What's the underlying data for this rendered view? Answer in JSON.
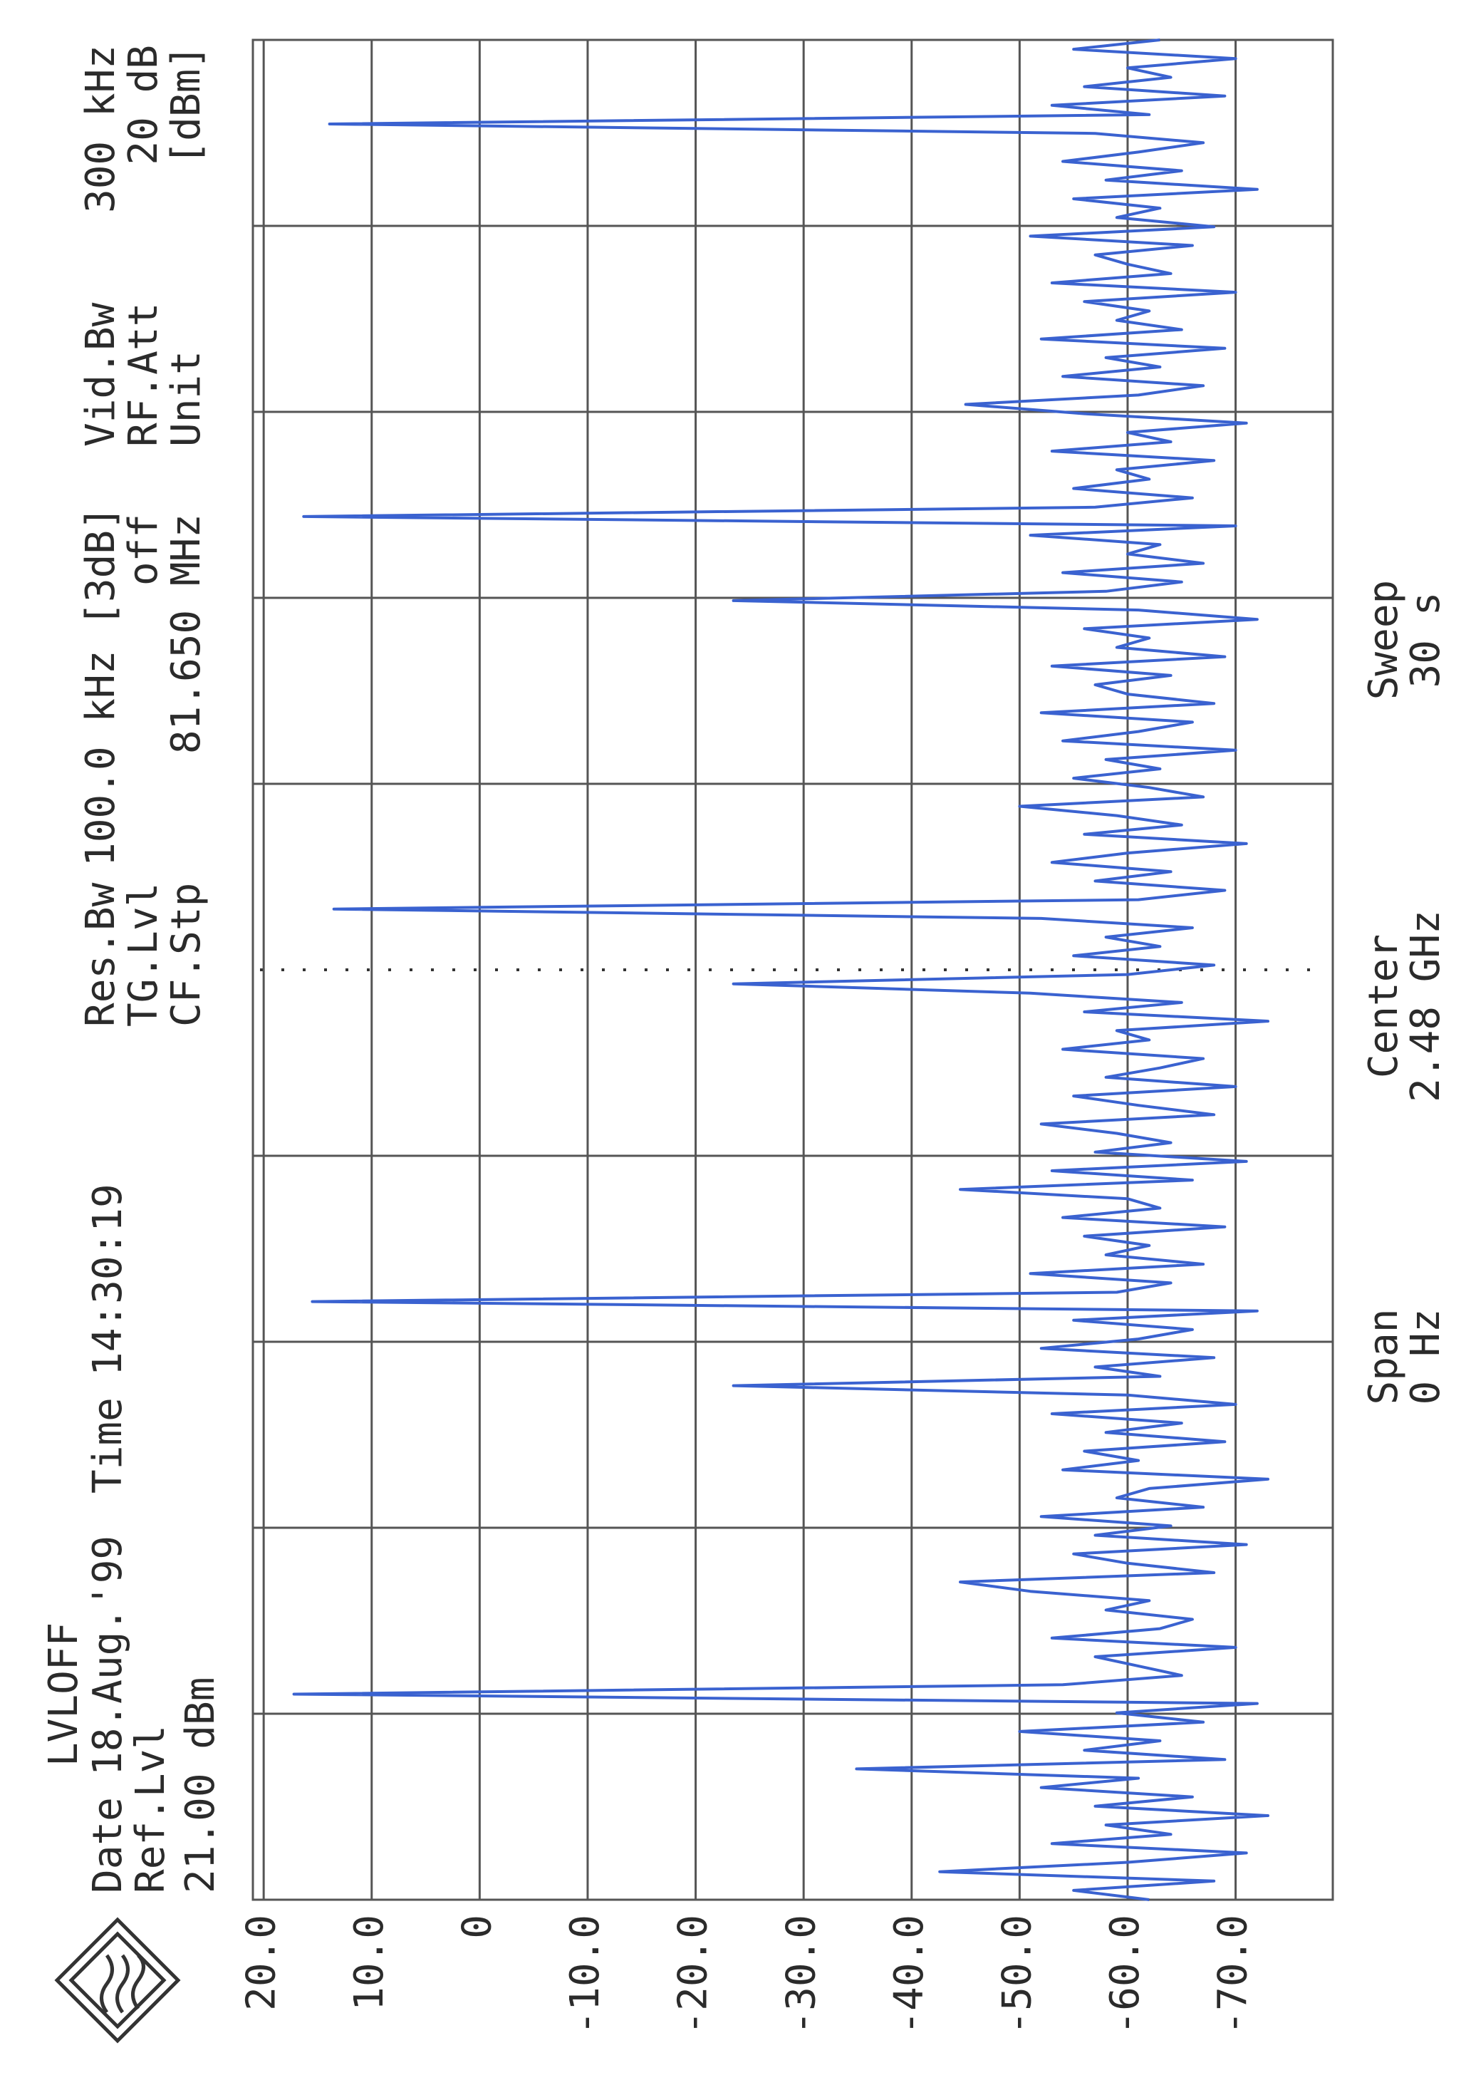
{
  "chart_data": {
    "type": "line",
    "status": "LVLOFF",
    "info": [
      {
        "label": "Date",
        "value": "18.Aug.'99"
      },
      {
        "label": "Time",
        "value": "14:30:19"
      },
      {
        "label": "Ref.Lvl",
        "value": "21.00 dBm"
      },
      {
        "label": "Res.Bw",
        "value": "100.0 kHz [3dB]"
      },
      {
        "label": "TG.Lvl",
        "value": "off"
      },
      {
        "label": "CF.Stp",
        "value": "81.650 MHz"
      },
      {
        "label": "Vid.Bw",
        "value": "300 kHz"
      },
      {
        "label": "RF.Att",
        "value": "20 dB"
      },
      {
        "label": "Unit",
        "value": "[dBm]"
      }
    ],
    "footer": [
      {
        "label": "Span",
        "value": "0 Hz"
      },
      {
        "label": "Center",
        "value": "2.48 GHz"
      },
      {
        "label": "Sweep",
        "value": "30 s"
      }
    ],
    "ylim": [
      -79,
      21
    ],
    "yticks": [
      {
        "value": 20,
        "label": "20.0"
      },
      {
        "value": 10,
        "label": "10.0"
      },
      0,
      {
        "value": -10,
        "label": "-10.0"
      },
      {
        "value": -20,
        "label": "-20.0"
      },
      {
        "value": -30,
        "label": "-30.0"
      },
      {
        "value": -40,
        "label": "-40.0"
      },
      {
        "value": -50,
        "label": "-50.0"
      },
      {
        "value": -60,
        "label": "-60.0"
      },
      {
        "value": -70,
        "label": "-70.0"
      }
    ],
    "grid": true,
    "color": "#3a62d0",
    "values": [
      -62,
      -55,
      -68,
      -42.6,
      -60,
      -71,
      -53,
      -64,
      -58,
      -73,
      -57,
      -66,
      -52,
      -61,
      -34.9,
      -69,
      -56,
      -63,
      -50,
      -67,
      -59,
      -72,
      17.2,
      -54,
      -65,
      -61,
      -57,
      -70,
      -53,
      -63,
      -66,
      -58,
      -62,
      -51,
      -44.5,
      -68,
      -60,
      -55,
      -71,
      -57,
      -64,
      -52,
      -67,
      -59,
      -62,
      -73,
      -54,
      -61,
      -56,
      -69,
      -58,
      -65,
      -53,
      -70,
      -60,
      -23.5,
      -63,
      -57,
      -68,
      -52,
      -61,
      -66,
      -55,
      -72,
      15.5,
      -59,
      -64,
      -51,
      -67,
      -58,
      -62,
      -56,
      -69,
      -54,
      -63,
      -60,
      -44.5,
      -66,
      -53,
      -71,
      -57,
      -64,
      -59,
      -52,
      -68,
      -61,
      -55,
      -70,
      -58,
      -63,
      -67,
      -54,
      -62,
      -59,
      -73,
      -56,
      -65,
      -51,
      -23.5,
      -60,
      -68,
      -55,
      -63,
      -58,
      -66,
      -52,
      13.5,
      -61,
      -69,
      -57,
      -64,
      -53,
      -60,
      -71,
      -56,
      -65,
      -59,
      -50,
      -67,
      -62,
      -55,
      -63,
      -58,
      -70,
      -54,
      -61,
      -66,
      -52,
      -68,
      -60,
      -57,
      -64,
      -53,
      -69,
      -59,
      -62,
      -56,
      -72,
      -61,
      -23.5,
      -58,
      -65,
      -54,
      -67,
      -60,
      -63,
      -51,
      -70,
      16.3,
      -57,
      -66,
      -55,
      -62,
      -59,
      -68,
      -53,
      -64,
      -60,
      -71,
      -56,
      -45,
      -61,
      -67,
      -54,
      -63,
      -58,
      -69,
      -52,
      -65,
      -59,
      -62,
      -56,
      -70,
      -53,
      -64,
      -60,
      -57,
      -66,
      -51,
      -68,
      -59,
      -63,
      -55,
      -72,
      -58,
      -65,
      -54,
      -61,
      -67,
      -57,
      13.9,
      -62,
      -53,
      -69,
      -56,
      -64,
      -60,
      -70,
      -55,
      -63
    ]
  }
}
